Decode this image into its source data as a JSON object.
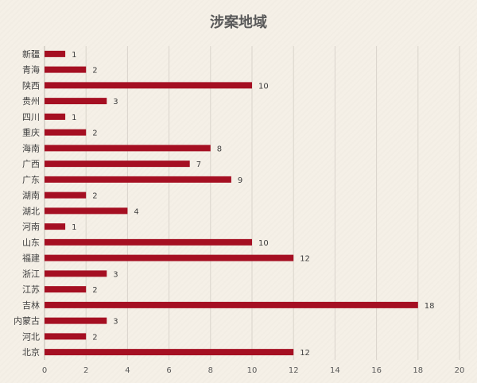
{
  "chart_data": {
    "type": "bar",
    "orientation": "horizontal",
    "title": "涉案地域",
    "xlabel": "",
    "ylabel": "",
    "xlim": [
      0,
      20
    ],
    "ticks": [
      0,
      2,
      4,
      6,
      8,
      10,
      12,
      14,
      16,
      18,
      20
    ],
    "grid": true,
    "bar_color": "#a50f22",
    "categories": [
      "新疆",
      "青海",
      "陕西",
      "贵州",
      "四川",
      "重庆",
      "海南",
      "广西",
      "广东",
      "湖南",
      "湖北",
      "河南",
      "山东",
      "福建",
      "浙江",
      "江苏",
      "吉林",
      "内蒙古",
      "河北",
      "北京"
    ],
    "values": [
      1,
      2,
      10,
      3,
      1,
      2,
      8,
      7,
      9,
      2,
      4,
      1,
      10,
      12,
      3,
      2,
      18,
      3,
      2,
      12
    ]
  }
}
